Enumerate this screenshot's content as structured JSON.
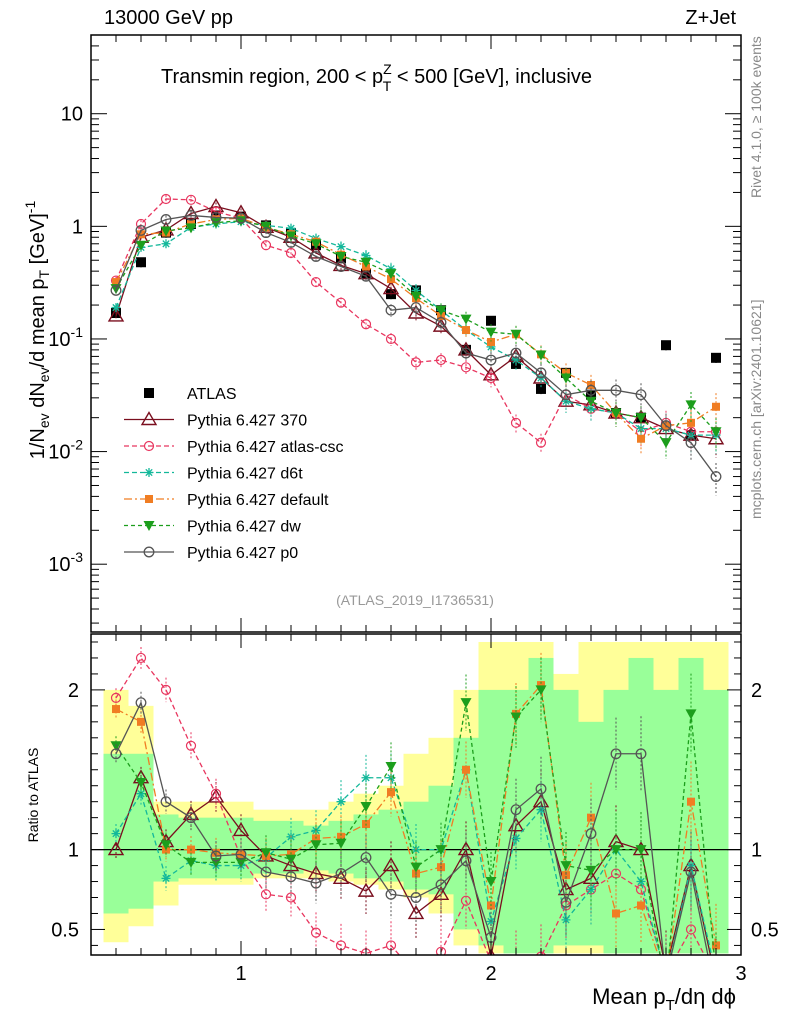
{
  "header": {
    "left": "13000 GeV pp",
    "right": "Z+Jet",
    "rivet": "Rivet 4.1.0, ≥ 100k events",
    "mcplots": "mcplots.cern.ch [arXiv:2401.10621]"
  },
  "chart_data": [
    {
      "type": "line",
      "panel": "main",
      "title": "Transmin region, 200 < p_T^Z < 500 [GeV], inclusive",
      "watermark": "(ATLAS_2019_I1736531)",
      "ylabel": "1/N_ev dN_ev/d mean p_T [GeV]^-1",
      "yscale": "log",
      "ylim": [
        0.00025,
        50
      ],
      "xlim": [
        0.4,
        3.0
      ],
      "ytick_labels": [
        "10",
        "1",
        "10^-1",
        "10^-2",
        "10^-3"
      ],
      "x": [
        0.5,
        0.6,
        0.7,
        0.8,
        0.9,
        1.0,
        1.1,
        1.2,
        1.3,
        1.4,
        1.5,
        1.6,
        1.7,
        1.8,
        1.9,
        2.0,
        2.1,
        2.2,
        2.3,
        2.4,
        2.5,
        2.6,
        2.7,
        2.8,
        2.9
      ],
      "series": [
        {
          "name": "ATLAS",
          "color": "#000000",
          "values": [
            0.17,
            0.48,
            0.88,
            1.05,
            1.25,
            1.22,
            1.02,
            0.87,
            0.68,
            0.52,
            0.38,
            0.25,
            0.27,
            0.18,
            0.08,
            0.145,
            0.06,
            0.036,
            0.05,
            0.032,
            0.022,
            0.02,
            0.088,
            0.014,
            0.068
          ]
        },
        {
          "name": "Pythia 6.427 370",
          "color": "#7a0e1e",
          "values": [
            0.16,
            0.8,
            0.93,
            1.3,
            1.5,
            1.32,
            0.98,
            0.8,
            0.58,
            0.45,
            0.38,
            0.28,
            0.17,
            0.13,
            0.08,
            0.048,
            0.07,
            0.045,
            0.028,
            0.026,
            0.022,
            0.02,
            0.016,
            0.014,
            0.013
          ]
        },
        {
          "name": "Pythia 6.427 atlas-csc",
          "color": "#e8365f",
          "values": [
            0.33,
            1.05,
            1.75,
            1.72,
            1.35,
            1.18,
            0.68,
            0.58,
            0.32,
            0.21,
            0.135,
            0.1,
            0.062,
            0.065,
            0.056,
            0.045,
            0.018,
            0.012,
            0.032,
            0.024,
            0.022,
            0.015,
            0.018,
            0.015,
            0.015
          ]
        },
        {
          "name": "Pythia 6.427 d6t",
          "color": "#13b89a",
          "values": [
            0.19,
            0.65,
            0.7,
            0.98,
            1.05,
            1.1,
            1.02,
            0.96,
            0.78,
            0.66,
            0.55,
            0.42,
            0.27,
            0.18,
            0.12,
            0.085,
            0.065,
            0.045,
            0.028,
            0.024,
            0.022,
            0.016,
            0.016,
            0.014,
            0.014
          ]
        },
        {
          "name": "Pythia 6.427 default",
          "color": "#f07d23",
          "values": [
            0.32,
            0.85,
            0.88,
            1.05,
            1.15,
            1.18,
            0.98,
            0.85,
            0.73,
            0.56,
            0.44,
            0.34,
            0.23,
            0.16,
            0.12,
            0.094,
            0.11,
            0.073,
            0.05,
            0.039,
            0.022,
            0.013,
            0.017,
            0.018,
            0.025
          ]
        },
        {
          "name": "Pythia 6.427 dw",
          "color": "#1c9e1c",
          "values": [
            0.28,
            0.68,
            0.91,
            0.97,
            1.08,
            1.12,
            1.0,
            0.82,
            0.7,
            0.54,
            0.48,
            0.38,
            0.24,
            0.18,
            0.15,
            0.115,
            0.11,
            0.072,
            0.045,
            0.028,
            0.022,
            0.02,
            0.012,
            0.026,
            0.015
          ]
        },
        {
          "name": "Pythia 6.427 p0",
          "color": "#555555",
          "values": [
            0.27,
            0.92,
            1.15,
            1.25,
            1.2,
            1.18,
            0.88,
            0.72,
            0.54,
            0.44,
            0.36,
            0.18,
            0.19,
            0.14,
            0.075,
            0.065,
            0.075,
            0.05,
            0.032,
            0.035,
            0.035,
            0.032,
            0.017,
            0.012,
            0.006
          ]
        }
      ]
    },
    {
      "type": "line",
      "panel": "ratio",
      "ylabel": "Ratio to ATLAS",
      "xlabel": "Mean p_T/dη dϕ",
      "ylim": [
        0.34,
        2.35
      ],
      "xlim": [
        0.4,
        3.0
      ],
      "xtick_labels": [
        "1",
        "2",
        "3"
      ],
      "ytick_labels": [
        "2",
        "1",
        "0.5"
      ],
      "x": [
        0.5,
        0.6,
        0.7,
        0.8,
        0.9,
        1.0,
        1.1,
        1.2,
        1.3,
        1.4,
        1.5,
        1.6,
        1.7,
        1.8,
        1.9,
        2.0,
        2.1,
        2.2,
        2.3,
        2.4,
        2.5,
        2.6,
        2.7,
        2.8,
        2.9
      ],
      "band_inner": [
        [
          0.6,
          1.6
        ],
        [
          0.63,
          1.6
        ],
        [
          0.8,
          1.22
        ],
        [
          0.82,
          1.2
        ],
        [
          0.82,
          1.2
        ],
        [
          0.82,
          1.2
        ],
        [
          0.85,
          1.18
        ],
        [
          0.85,
          1.18
        ],
        [
          0.87,
          1.15
        ],
        [
          0.85,
          1.18
        ],
        [
          0.82,
          1.22
        ],
        [
          0.8,
          1.25
        ],
        [
          0.75,
          1.3
        ],
        [
          0.72,
          1.4
        ],
        [
          0.5,
          1.7
        ],
        [
          0.4,
          2.0
        ],
        [
          0.35,
          2.0
        ],
        [
          0.35,
          2.2
        ],
        [
          0.4,
          2.0
        ],
        [
          0.4,
          1.8
        ],
        [
          0.35,
          2.0
        ],
        [
          0.35,
          2.2
        ],
        [
          0.35,
          2.0
        ],
        [
          0.35,
          2.2
        ],
        [
          0.35,
          2.0
        ]
      ],
      "band_outer": [
        [
          0.42,
          2.0
        ],
        [
          0.52,
          1.9
        ],
        [
          0.65,
          1.3
        ],
        [
          0.78,
          1.3
        ],
        [
          0.78,
          1.3
        ],
        [
          0.78,
          1.3
        ],
        [
          0.82,
          1.25
        ],
        [
          0.82,
          1.25
        ],
        [
          0.82,
          1.25
        ],
        [
          0.8,
          1.3
        ],
        [
          0.78,
          1.35
        ],
        [
          0.75,
          1.4
        ],
        [
          0.7,
          1.6
        ],
        [
          0.6,
          1.7
        ],
        [
          0.4,
          2.0
        ],
        [
          0.35,
          2.3
        ],
        [
          0.35,
          2.3
        ],
        [
          0.35,
          2.3
        ],
        [
          0.35,
          2.1
        ],
        [
          0.35,
          2.3
        ],
        [
          0.35,
          2.3
        ],
        [
          0.35,
          2.3
        ],
        [
          0.35,
          2.3
        ],
        [
          0.35,
          2.3
        ],
        [
          0.35,
          2.3
        ]
      ],
      "series": [
        {
          "name": "Pythia 6.427 370",
          "color": "#7a0e1e",
          "values": [
            1.0,
            1.45,
            1.05,
            1.22,
            1.33,
            1.12,
            0.96,
            0.9,
            0.85,
            0.82,
            0.74,
            0.9,
            0.6,
            0.72,
            1.0,
            0.33,
            1.15,
            1.3,
            0.75,
            0.82,
            1.05,
            1.0,
            0.25,
            0.9,
            0.18
          ]
        },
        {
          "name": "Pythia 6.427 atlas-csc",
          "color": "#e8365f",
          "values": [
            1.95,
            2.2,
            2.0,
            1.65,
            1.35,
            0.95,
            0.72,
            0.7,
            0.48,
            0.4,
            0.35,
            0.4,
            0.22,
            0.36,
            0.68,
            0.3,
            0.3,
            0.33,
            0.65,
            0.75,
            0.85,
            0.75,
            0.22,
            0.5,
            0.2
          ]
        },
        {
          "name": "Pythia 6.427 d6t",
          "color": "#13b89a",
          "values": [
            1.1,
            1.35,
            0.82,
            0.93,
            0.9,
            0.9,
            0.95,
            1.08,
            1.12,
            1.3,
            1.45,
            1.45,
            1.0,
            1.0,
            1.5,
            0.55,
            1.07,
            1.25,
            0.56,
            0.75,
            1.0,
            0.8,
            0.2,
            0.9,
            0.22
          ]
        },
        {
          "name": "Pythia 6.427 default",
          "color": "#f07d23",
          "values": [
            1.88,
            1.8,
            1.0,
            1.0,
            0.98,
            0.97,
            0.96,
            0.97,
            1.07,
            1.08,
            1.16,
            1.36,
            0.85,
            0.89,
            1.5,
            0.65,
            1.85,
            2.03,
            0.84,
            1.2,
            0.6,
            0.65,
            0.2,
            1.3,
            0.4
          ]
        },
        {
          "name": "Pythia 6.427 dw",
          "color": "#1c9e1c",
          "values": [
            1.65,
            1.42,
            1.03,
            0.92,
            0.92,
            0.92,
            0.98,
            0.94,
            1.03,
            1.04,
            1.27,
            1.52,
            0.89,
            1.0,
            1.92,
            0.8,
            1.83,
            2.0,
            0.9,
            0.87,
            1.0,
            1.0,
            0.14,
            1.85,
            0.22
          ]
        },
        {
          "name": "Pythia 6.427 p0",
          "color": "#555555",
          "values": [
            1.6,
            1.92,
            1.3,
            1.2,
            0.96,
            0.97,
            0.86,
            0.83,
            0.79,
            0.85,
            0.95,
            0.72,
            0.7,
            0.78,
            0.93,
            0.45,
            1.25,
            1.38,
            0.67,
            1.1,
            1.6,
            1.6,
            0.2,
            0.86,
            0.09
          ]
        }
      ]
    }
  ]
}
